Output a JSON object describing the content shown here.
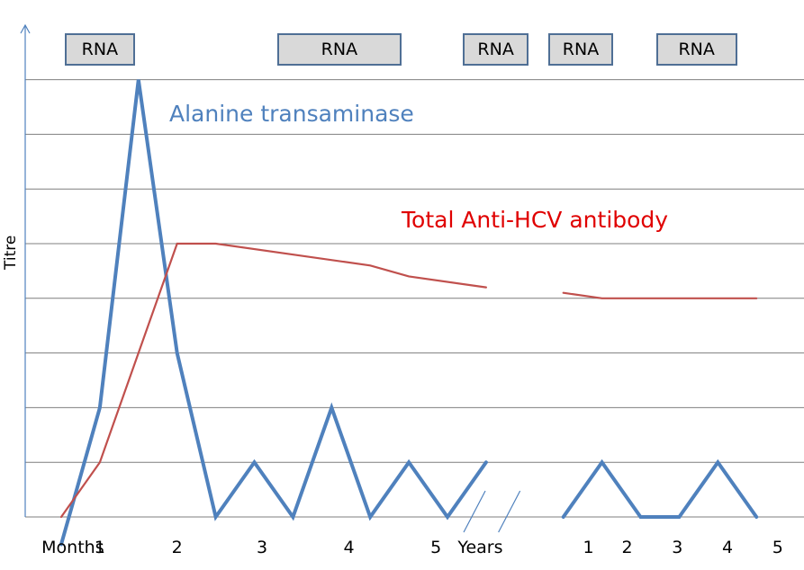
{
  "chart_data": {
    "type": "line",
    "ylabel": "Titre",
    "grid": true,
    "ymax": 8,
    "x_axis_labels": [
      {
        "text": "Months",
        "x": 0.3
      },
      {
        "text": "1",
        "x": 1
      },
      {
        "text": "2",
        "x": 3
      },
      {
        "text": "3",
        "x": 5.2
      },
      {
        "text": "4",
        "x": 7.45
      },
      {
        "text": "5",
        "x": 9.7
      },
      {
        "text": "Years",
        "x": 10.85
      },
      {
        "text": "1",
        "x": 13.65
      },
      {
        "text": "2",
        "x": 14.65
      },
      {
        "text": "3",
        "x": 15.95
      },
      {
        "text": "4",
        "x": 17.25
      },
      {
        "text": "5",
        "x": 18.55
      }
    ],
    "axis_breaks": [
      10.7,
      11.6
    ],
    "rna_labels": [
      "RNA",
      "RNA",
      "RNA",
      "RNA",
      "RNA"
    ],
    "rna_periods": [
      [
        0.1,
        1.9
      ],
      [
        5.6,
        8.8
      ],
      [
        10.4,
        12.1
      ],
      [
        12.6,
        14.3
      ],
      [
        15.4,
        17.5
      ]
    ],
    "series": [
      {
        "name": "Alanine transaminase",
        "color": "#4f81bd",
        "segments": [
          [
            [
              0,
              -0.5
            ],
            [
              1,
              2
            ],
            [
              2,
              8
            ],
            [
              3,
              3
            ],
            [
              4,
              0
            ],
            [
              5,
              1
            ],
            [
              6,
              0
            ],
            [
              7,
              2
            ],
            [
              8,
              0
            ],
            [
              9,
              1
            ],
            [
              10,
              0
            ],
            [
              11,
              1
            ]
          ],
          [
            [
              13,
              0
            ],
            [
              14,
              1
            ],
            [
              15,
              0
            ],
            [
              16,
              0
            ],
            [
              17,
              1
            ],
            [
              18,
              0
            ]
          ]
        ]
      },
      {
        "name": "Total Anti-HCV antibody",
        "color": "#c0504d",
        "segments": [
          [
            [
              0,
              0
            ],
            [
              1,
              1
            ],
            [
              3,
              5
            ],
            [
              4,
              5
            ],
            [
              8,
              4.6
            ],
            [
              9,
              4.4
            ],
            [
              11,
              4.2
            ]
          ],
          [
            [
              13,
              4.1
            ],
            [
              14,
              4.0
            ],
            [
              16,
              4.0
            ],
            [
              18,
              4.0
            ]
          ]
        ]
      }
    ]
  }
}
